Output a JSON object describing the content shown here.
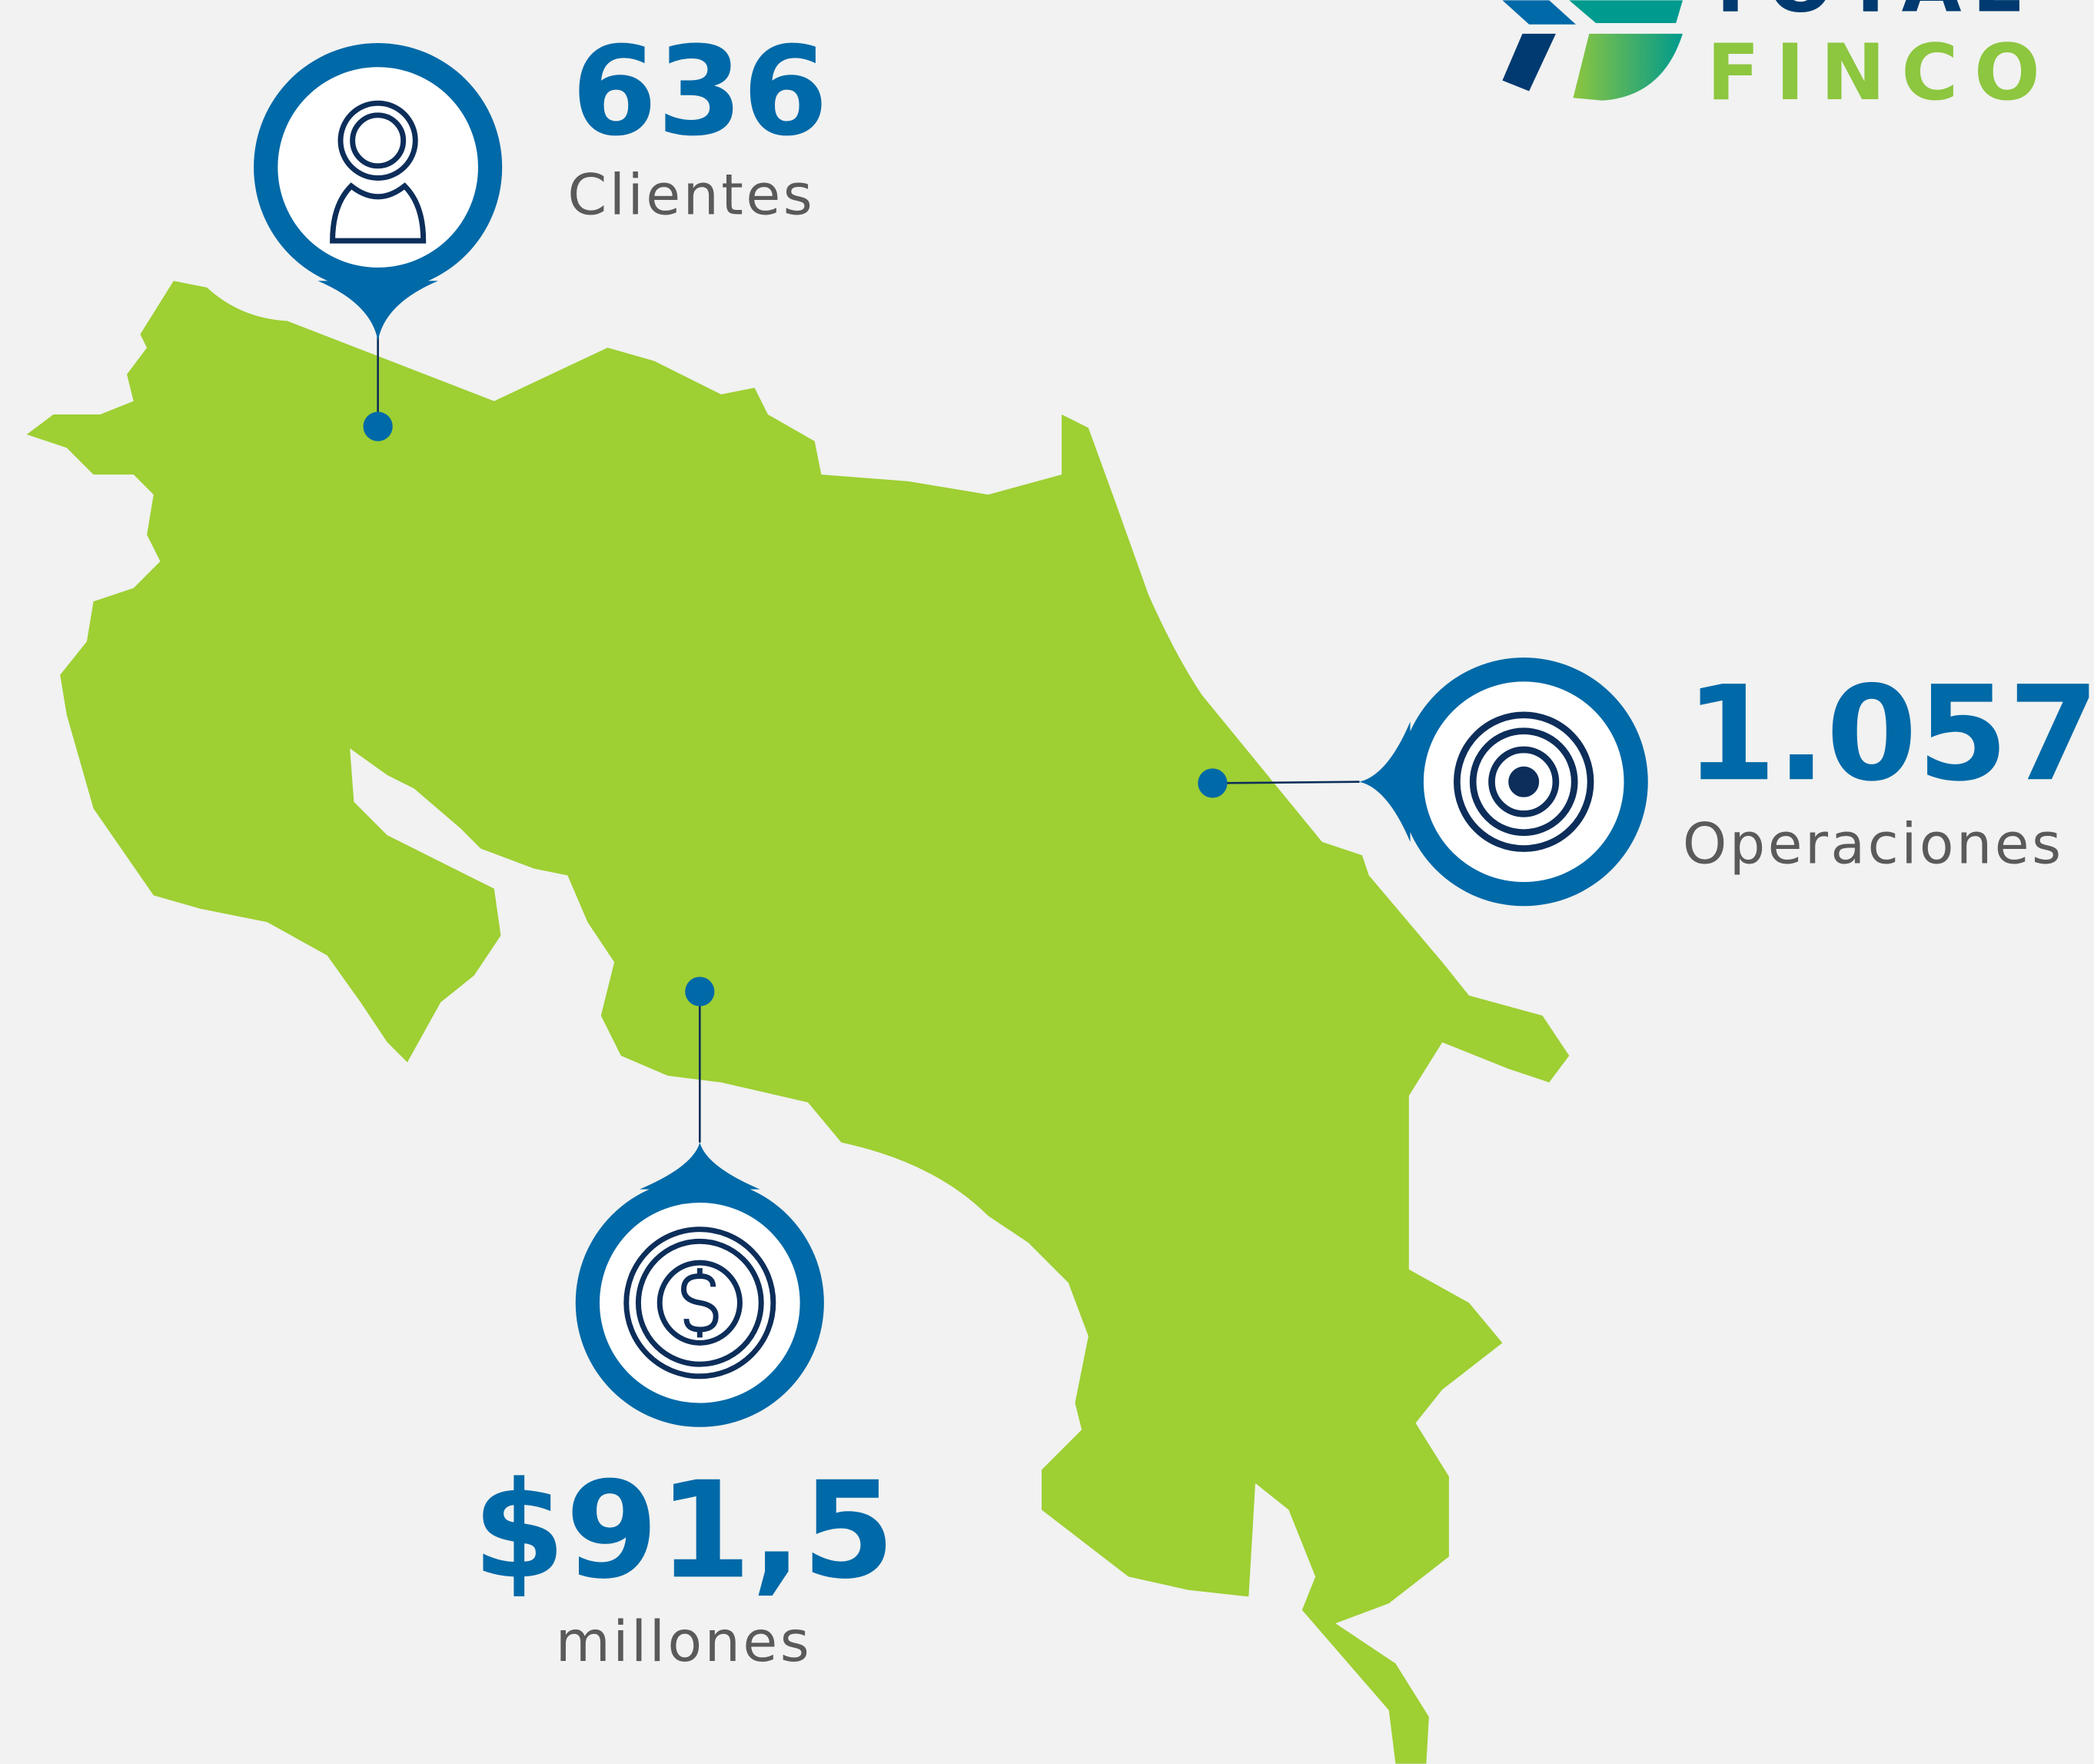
{
  "logo": {
    "top_text": "TOTAL",
    "text": "FINCO"
  },
  "stats": [
    {
      "value": "636",
      "label": "Clientes"
    },
    {
      "value": "1.057",
      "label": "Operaciones"
    },
    {
      "value": "$91,5",
      "label": "millones"
    }
  ]
}
